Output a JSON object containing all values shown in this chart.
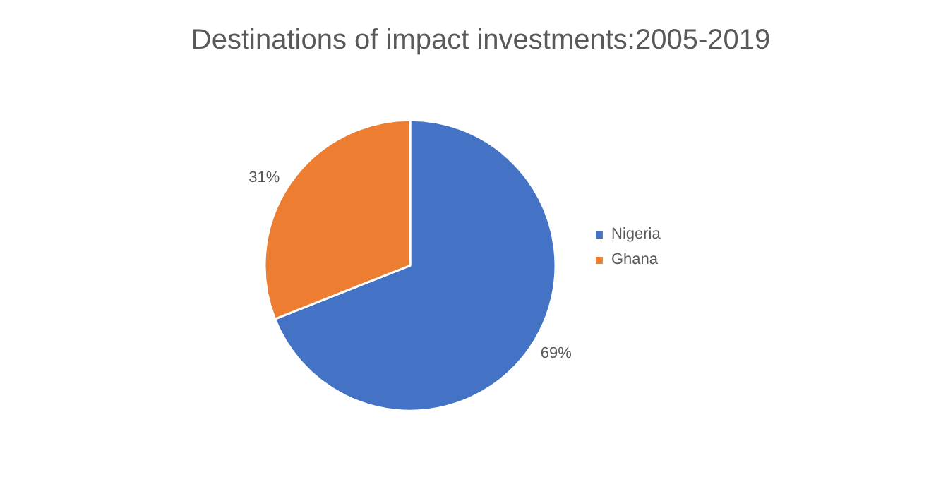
{
  "chart_data": {
    "type": "pie",
    "title": "Destinations of impact investments:2005-2019",
    "categories": [
      "Nigeria",
      "Ghana"
    ],
    "values": [
      69,
      31
    ],
    "colors": [
      "#4472c4",
      "#ed7d31"
    ],
    "value_labels": [
      "69%",
      "31%"
    ],
    "legend": "right"
  }
}
